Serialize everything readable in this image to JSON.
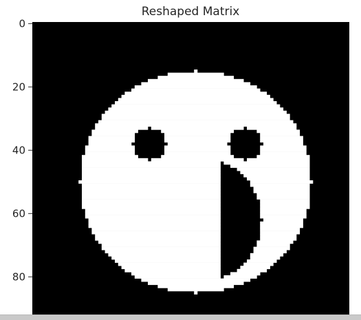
{
  "chart_data": {
    "type": "heatmap",
    "title": "Reshaped Matrix",
    "colormap": "gray",
    "background_value": 0,
    "foreground_value": 1,
    "rows": 96,
    "cols": 96,
    "yticks": [
      0,
      20,
      40,
      60,
      80
    ],
    "xticks": [],
    "ylim": [
      95.5,
      -0.5
    ],
    "xlim": [
      -0.5,
      95.5
    ],
    "shapes": [
      {
        "kind": "disk",
        "value": 1,
        "center": [
          50,
          49
        ],
        "radius": 35
      },
      {
        "kind": "disk",
        "value": 0,
        "center": [
          38,
          35
        ],
        "radius": 5
      },
      {
        "kind": "disk",
        "value": 0,
        "center": [
          38,
          64
        ],
        "radius": 5
      },
      {
        "kind": "half-disk-right",
        "value": 0,
        "x_start": 57,
        "center": [
          62,
          49
        ],
        "radius": 20
      }
    ]
  }
}
